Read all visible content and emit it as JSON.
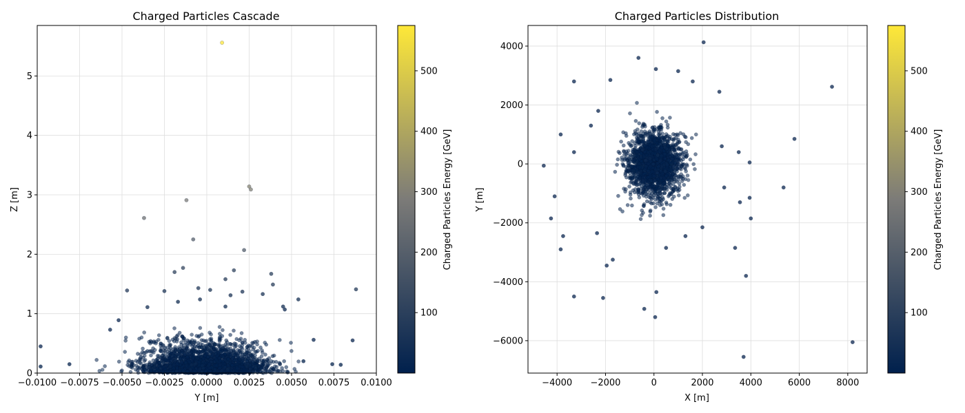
{
  "chart_data": [
    {
      "type": "scatter",
      "title": "Charged Particles Cascade",
      "xlabel": "Y [m]",
      "ylabel": "Z [m]",
      "xlim": [
        -0.01,
        0.01
      ],
      "ylim": [
        0,
        5.85
      ],
      "xticks": [
        -0.01,
        -0.0075,
        -0.005,
        -0.0025,
        0.0,
        0.0025,
        0.005,
        0.0075,
        0.01
      ],
      "xtick_labels": [
        "−0.0100",
        "−0.0075",
        "−0.0050",
        "−0.0025",
        "0.0000",
        "0.0025",
        "0.0050",
        "0.0075",
        "0.0100"
      ],
      "yticks": [
        0,
        1,
        2,
        3,
        4,
        5
      ],
      "ytick_labels": [
        "0",
        "1",
        "2",
        "3",
        "4",
        "5"
      ],
      "grid": true,
      "points": [
        {
          "x": 0.0009,
          "y": 5.56,
          "e": 570
        },
        {
          "x": 0.0025,
          "y": 3.14,
          "e": 310
        },
        {
          "x": 0.0026,
          "y": 3.09,
          "e": 300
        },
        {
          "x": -0.0012,
          "y": 2.91,
          "e": 280
        },
        {
          "x": -0.0037,
          "y": 2.61,
          "e": 250
        },
        {
          "x": -0.0008,
          "y": 2.25,
          "e": 200
        },
        {
          "x": 0.0022,
          "y": 2.07,
          "e": 190
        },
        {
          "x": -0.0014,
          "y": 1.77,
          "e": 120
        },
        {
          "x": -0.0019,
          "y": 1.7,
          "e": 110
        },
        {
          "x": 0.0016,
          "y": 1.73,
          "e": 110
        },
        {
          "x": 0.0038,
          "y": 1.67,
          "e": 100
        },
        {
          "x": 0.0011,
          "y": 1.58,
          "e": 90
        },
        {
          "x": 0.0039,
          "y": 1.49,
          "e": 90
        },
        {
          "x": 0.0088,
          "y": 1.41,
          "e": 80
        },
        {
          "x": -0.0047,
          "y": 1.39,
          "e": 80
        },
        {
          "x": -0.0005,
          "y": 1.43,
          "e": 80
        },
        {
          "x": 0.0002,
          "y": 1.4,
          "e": 70
        },
        {
          "x": 0.0021,
          "y": 1.37,
          "e": 70
        },
        {
          "x": -0.0025,
          "y": 1.38,
          "e": 70
        },
        {
          "x": 0.0033,
          "y": 1.33,
          "e": 60
        },
        {
          "x": 0.0014,
          "y": 1.31,
          "e": 60
        },
        {
          "x": 0.0054,
          "y": 1.24,
          "e": 50
        },
        {
          "x": -0.0004,
          "y": 1.24,
          "e": 50
        },
        {
          "x": -0.0017,
          "y": 1.2,
          "e": 40
        },
        {
          "x": 0.0045,
          "y": 1.12,
          "e": 40
        },
        {
          "x": -0.0035,
          "y": 1.11,
          "e": 40
        },
        {
          "x": 0.0011,
          "y": 1.12,
          "e": 40
        },
        {
          "x": 0.0046,
          "y": 1.07,
          "e": 30
        },
        {
          "x": -0.0098,
          "y": 0.45,
          "e": 20
        },
        {
          "x": -0.0098,
          "y": 0.11,
          "e": 10
        },
        {
          "x": 0.0086,
          "y": 0.55,
          "e": 20
        },
        {
          "x": 0.0063,
          "y": 0.56,
          "e": 20
        },
        {
          "x": 0.0079,
          "y": 0.14,
          "e": 10
        },
        {
          "x": 0.0074,
          "y": 0.15,
          "e": 10
        },
        {
          "x": -0.0081,
          "y": 0.15,
          "e": 10
        },
        {
          "x": -0.0057,
          "y": 0.73,
          "e": 20
        },
        {
          "x": -0.0052,
          "y": 0.89,
          "e": 20
        },
        {
          "x": 0.0057,
          "y": 0.2,
          "e": 10
        }
      ],
      "cluster": {
        "x_center": 0.0,
        "x_spread": 0.0018,
        "density_near_zero": "very high",
        "y_mostly_below": 0.4
      },
      "colorbar": {
        "label": "Charged Particles Energy [GeV]",
        "range": [
          0,
          575
        ],
        "ticks": [
          100,
          200,
          300,
          400,
          500
        ],
        "tick_labels": [
          "100",
          "200",
          "300",
          "400",
          "500"
        ],
        "colors": [
          "#00204d",
          "#7c7b78",
          "#fee838"
        ]
      }
    },
    {
      "type": "scatter",
      "title": "Charged Particles Distribution",
      "xlabel": "X [m]",
      "ylabel": "Y [m]",
      "xlim": [
        -5200,
        8800
      ],
      "ylim": [
        -7100,
        4700
      ],
      "xticks": [
        -4000,
        -2000,
        0,
        2000,
        4000,
        6000,
        8000
      ],
      "xtick_labels": [
        "−4000",
        "−2000",
        "0",
        "2000",
        "4000",
        "6000",
        "8000"
      ],
      "yticks": [
        -6000,
        -4000,
        -2000,
        0,
        2000,
        4000
      ],
      "ytick_labels": [
        "−6000",
        "−4000",
        "−2000",
        "0",
        "2000",
        "4000"
      ],
      "grid": true,
      "points": [
        {
          "x": 2050,
          "y": 4130
        },
        {
          "x": -640,
          "y": 3600
        },
        {
          "x": 80,
          "y": 3220
        },
        {
          "x": 1000,
          "y": 3150
        },
        {
          "x": -3300,
          "y": 2800
        },
        {
          "x": 7350,
          "y": 2620
        },
        {
          "x": 5800,
          "y": 850
        },
        {
          "x": -3850,
          "y": 1000
        },
        {
          "x": -4550,
          "y": -60
        },
        {
          "x": -4100,
          "y": -1100
        },
        {
          "x": -4250,
          "y": -1850
        },
        {
          "x": -3850,
          "y": -2900
        },
        {
          "x": -3750,
          "y": -2450
        },
        {
          "x": -3300,
          "y": -4500
        },
        {
          "x": -2100,
          "y": -4550
        },
        {
          "x": -400,
          "y": -4920
        },
        {
          "x": 100,
          "y": -4350
        },
        {
          "x": 50,
          "y": -5200
        },
        {
          "x": 3700,
          "y": -6550
        },
        {
          "x": 8200,
          "y": -6050
        },
        {
          "x": 3800,
          "y": -3800
        },
        {
          "x": 5350,
          "y": -800
        },
        {
          "x": 3950,
          "y": -1150
        },
        {
          "x": 4000,
          "y": -1850
        },
        {
          "x": 3350,
          "y": -2850
        },
        {
          "x": 3550,
          "y": -1300
        },
        {
          "x": 3950,
          "y": 50
        },
        {
          "x": 3500,
          "y": 400
        },
        {
          "x": 2700,
          "y": 2450
        },
        {
          "x": 1600,
          "y": 2800
        },
        {
          "x": -1800,
          "y": 2850
        },
        {
          "x": -2300,
          "y": 1800
        },
        {
          "x": -2600,
          "y": 1300
        },
        {
          "x": -3300,
          "y": 400
        },
        {
          "x": -2350,
          "y": -2350
        },
        {
          "x": -1950,
          "y": -3450
        },
        {
          "x": -1700,
          "y": -3250
        },
        {
          "x": 500,
          "y": -2850
        },
        {
          "x": 1300,
          "y": -2450
        },
        {
          "x": 2000,
          "y": -2150
        },
        {
          "x": 2900,
          "y": -800
        },
        {
          "x": 2800,
          "y": 600
        }
      ],
      "cluster": {
        "x_center": 0,
        "y_center": 0,
        "radius": 900,
        "density": "very high"
      },
      "colorbar": {
        "label": "Charged Particles Energy [GeV]",
        "range": [
          0,
          575
        ],
        "ticks": [
          100,
          200,
          300,
          400,
          500
        ],
        "tick_labels": [
          "100",
          "200",
          "300",
          "400",
          "500"
        ],
        "colors": [
          "#00204d",
          "#7c7b78",
          "#fee838"
        ]
      }
    }
  ]
}
